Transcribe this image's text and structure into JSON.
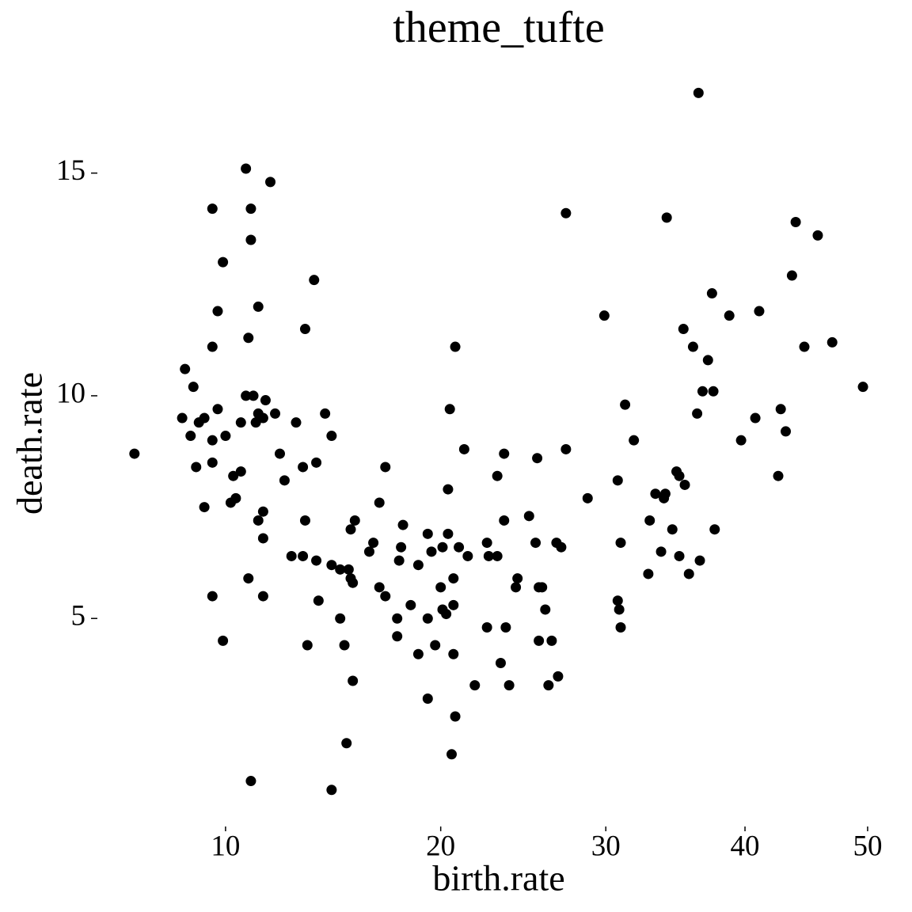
{
  "chart_data": {
    "type": "scatter",
    "title": "theme_tufte",
    "x_label": "birth.rate",
    "y_label": "death.rate",
    "xscale": "sqrt",
    "color": "#000000",
    "grid": false,
    "xlim": [
      6,
      52
    ],
    "ylim": [
      0.4,
      17.5
    ],
    "xticks": [
      10,
      20,
      30,
      40,
      50
    ],
    "yticks": [
      5,
      10,
      15
    ],
    "x": [
      6.8,
      8.4,
      8.5,
      8.7,
      8.8,
      8.9,
      9.0,
      9.2,
      9.2,
      9.5,
      9.5,
      9.5,
      9.5,
      9.5,
      9.7,
      9.7,
      9.9,
      9.9,
      10.0,
      10.2,
      10.3,
      10.4,
      10.6,
      10.6,
      10.8,
      10.8,
      10.9,
      10.9,
      11.0,
      11.0,
      11.0,
      11.1,
      11.2,
      11.3,
      11.3,
      11.3,
      11.5,
      11.5,
      11.5,
      11.5,
      11.6,
      11.8,
      12.0,
      12.2,
      12.4,
      12.7,
      12.9,
      13.2,
      13.2,
      13.3,
      13.3,
      13.4,
      13.7,
      13.8,
      13.8,
      13.9,
      14.2,
      14.5,
      14.5,
      14.5,
      14.9,
      14.9,
      15.1,
      15.2,
      15.3,
      15.4,
      15.4,
      15.5,
      15.5,
      15.6,
      16.3,
      16.5,
      16.8,
      16.8,
      17.1,
      17.1,
      17.7,
      17.7,
      17.8,
      17.9,
      18.0,
      18.4,
      18.8,
      18.8,
      19.3,
      19.3,
      19.3,
      19.5,
      19.7,
      20.0,
      20.1,
      20.1,
      20.3,
      20.4,
      20.4,
      20.5,
      20.6,
      20.7,
      20.7,
      20.7,
      20.8,
      20.8,
      21.0,
      21.3,
      21.5,
      21.9,
      22.6,
      22.6,
      22.7,
      23.2,
      23.2,
      23.4,
      23.6,
      23.6,
      23.7,
      23.9,
      24.3,
      24.4,
      25.1,
      25.5,
      25.6,
      25.7,
      25.7,
      25.9,
      26.1,
      26.3,
      26.5,
      26.8,
      26.9,
      27.1,
      27.4,
      27.4,
      28.8,
      29.9,
      30.8,
      30.8,
      30.9,
      31.0,
      31.0,
      31.3,
      31.9,
      32.9,
      33.0,
      33.4,
      33.8,
      34.0,
      34.1,
      34.2,
      34.6,
      34.9,
      35.1,
      35.1,
      35.4,
      35.5,
      35.8,
      36.1,
      36.4,
      36.5,
      36.6,
      36.8,
      37.2,
      37.5,
      37.6,
      37.7,
      38.8,
      39.7,
      40.8,
      41.1,
      42.6,
      42.8,
      43.2,
      43.7,
      44.0,
      44.7,
      45.8,
      47.0,
      49.6
    ],
    "values": [
      8.7,
      9.5,
      10.6,
      9.1,
      10.2,
      8.4,
      9.4,
      9.5,
      7.5,
      11.1,
      9.0,
      8.5,
      14.2,
      5.5,
      11.9,
      9.7,
      13.0,
      4.5,
      9.1,
      7.6,
      8.2,
      7.7,
      9.4,
      8.3,
      15.1,
      10.0,
      11.3,
      5.9,
      14.2,
      13.5,
      1.35,
      10.0,
      9.4,
      7.2,
      12.0,
      9.6,
      7.4,
      5.5,
      9.5,
      6.8,
      9.9,
      14.8,
      9.6,
      8.7,
      8.1,
      6.4,
      9.4,
      8.4,
      6.4,
      11.5,
      7.2,
      4.4,
      12.6,
      8.5,
      6.3,
      5.4,
      9.6,
      9.1,
      6.2,
      1.15,
      6.1,
      5.0,
      4.4,
      2.2,
      6.1,
      5.9,
      7.0,
      5.8,
      3.6,
      7.2,
      6.5,
      6.7,
      7.6,
      5.7,
      8.4,
      5.5,
      5.0,
      4.6,
      6.3,
      6.6,
      7.1,
      5.3,
      6.2,
      4.2,
      6.9,
      5.0,
      3.2,
      6.5,
      4.4,
      5.7,
      6.6,
      5.2,
      5.1,
      6.9,
      7.9,
      9.7,
      1.95,
      4.2,
      5.9,
      5.3,
      11.1,
      2.8,
      6.6,
      8.8,
      6.4,
      3.5,
      6.7,
      4.8,
      6.4,
      6.4,
      8.2,
      4.0,
      7.2,
      8.7,
      4.8,
      3.5,
      5.7,
      5.9,
      7.3,
      6.7,
      8.6,
      5.7,
      4.5,
      5.7,
      5.2,
      3.5,
      4.5,
      6.7,
      3.7,
      6.6,
      14.1,
      8.8,
      7.7,
      11.8,
      8.1,
      5.4,
      5.2,
      6.7,
      4.8,
      9.8,
      9.0,
      6.0,
      7.2,
      7.8,
      6.5,
      7.7,
      7.8,
      14.0,
      7.0,
      8.3,
      8.2,
      6.4,
      11.5,
      8.0,
      6.0,
      11.1,
      9.6,
      16.8,
      6.3,
      10.1,
      10.8,
      12.3,
      10.1,
      7.0,
      11.8,
      9.0,
      9.5,
      11.9,
      8.2,
      9.7,
      9.2,
      12.7,
      13.9,
      11.1,
      13.6,
      11.2,
      10.2
    ]
  }
}
